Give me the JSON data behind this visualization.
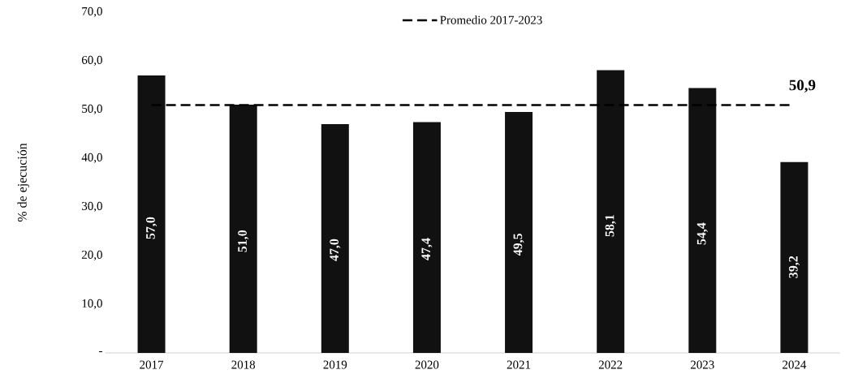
{
  "chart_data": {
    "type": "bar",
    "ylabel": "% de ejecución",
    "categories": [
      "2017",
      "2018",
      "2019",
      "2020",
      "2021",
      "2022",
      "2023",
      "2024"
    ],
    "values": [
      57.0,
      51.0,
      47.0,
      47.4,
      49.5,
      58.1,
      54.4,
      39.2
    ],
    "value_labels": [
      "57,0",
      "51,0",
      "47,0",
      "47,4",
      "49,5",
      "58,1",
      "54,4",
      "39,2"
    ],
    "color": "#111111",
    "ylim": [
      0,
      70
    ],
    "yticks": [
      {
        "value": 0,
        "label": "-"
      },
      {
        "value": 10,
        "label": "10,0"
      },
      {
        "value": 20,
        "label": "20,0"
      },
      {
        "value": 30,
        "label": "30,0"
      },
      {
        "value": 40,
        "label": "40,0"
      },
      {
        "value": 50,
        "label": "50,0"
      },
      {
        "value": 60,
        "label": "60,0"
      },
      {
        "value": 70,
        "label": "70,0"
      }
    ],
    "ref_lines": [
      {
        "axis": "y",
        "value": 50.9,
        "label": "Promedio 2017-2023",
        "color": "#000000",
        "line_style": "dashed"
      }
    ],
    "annotations": [
      {
        "text": "50,9",
        "x": "2024",
        "y": 50.9
      }
    ],
    "legend": "top"
  }
}
